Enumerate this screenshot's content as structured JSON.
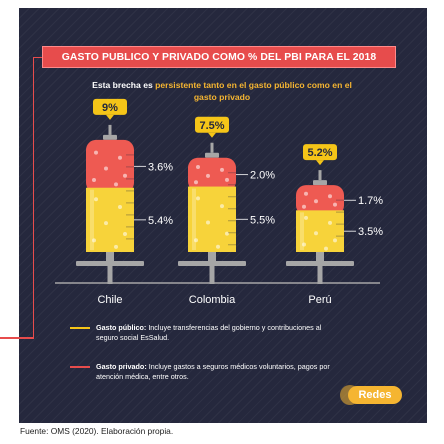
{
  "header": {
    "title": "GASTO PUBLICO Y PRIVADO COMO % DEL PBI PARA EL 2018",
    "subtitle_prefix": "Esta brecha es",
    "subtitle_highlight": "persistente tanto en el gasto público como en el gasto privado"
  },
  "chart_data": {
    "type": "bar",
    "stacked": true,
    "categories": [
      "Chile",
      "Colombia",
      "Perú"
    ],
    "series": [
      {
        "name": "Gasto público",
        "values": [
          5.4,
          5.5,
          3.5
        ],
        "value_labels": [
          "5.4%",
          "5.5%",
          "3.5%"
        ],
        "color": "#f7d33a"
      },
      {
        "name": "Gasto privado",
        "values": [
          3.6,
          2.0,
          1.7
        ],
        "value_labels": [
          "3.6%",
          "2.0%",
          "1.7%"
        ],
        "color": "#ee5a52"
      }
    ],
    "totals": [
      9,
      7.5,
      5.2
    ],
    "total_labels": [
      "9%",
      "7.5%",
      "5.2%"
    ],
    "style": "syringe",
    "grid": false
  },
  "legend": {
    "public": {
      "label": "Gasto público:",
      "text": "Incluye transferencias del gobierno y contribuciones al seguro social EsSalud.",
      "color": "#f5c518"
    },
    "private": {
      "label": "Gasto privado:",
      "text": "Incluye gastos a seguros médicos voluntarios, pagos por atención médica, entre otros.",
      "color": "#e74c4c"
    }
  },
  "brand": {
    "label": "Redes",
    "color": "#f5b531"
  },
  "source": "Fuente: OMS (2020). Elaboración propia.",
  "colors": {
    "background": "#25283d",
    "accent": "#e74c4c",
    "highlight": "#f5b531",
    "metal": "#a6a6a6"
  }
}
